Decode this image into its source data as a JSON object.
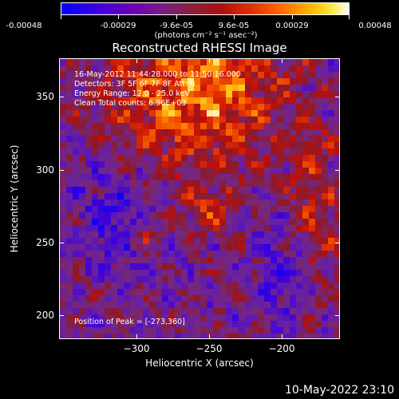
{
  "colorbar": {
    "labels": [
      "-0.00048",
      "-0.00029",
      "-9.6e-05",
      "9.6e-05",
      "0.00029",
      "0.00048"
    ],
    "units": "(photons cm⁻² s⁻¹ asec⁻²)"
  },
  "title": "Reconstructed RHESSI Image",
  "annotations": {
    "time_range": "16-May-2012 11:44:28.000 to 11:50:16.000",
    "detectors": "Detectors: 3F 5F 6F 7F 8F   Att: 0",
    "energy_range": "Energy Range: 12.0 - 25.0 keV",
    "algorithm": "Clean      Total counts: 6.96E+03",
    "peak": "Position of Peak = [-273,360]"
  },
  "axes": {
    "x_label": "Heliocentric X (arcsec)",
    "y_label": "Heliocentric Y (arcsec)",
    "x_ticks": [
      "−300",
      "−250",
      "−200"
    ],
    "y_ticks": [
      "350",
      "300",
      "250",
      "200"
    ]
  },
  "footer": "10-May-2022 23:10",
  "colors": {
    "background": "#000000",
    "text": "#ffffff"
  }
}
